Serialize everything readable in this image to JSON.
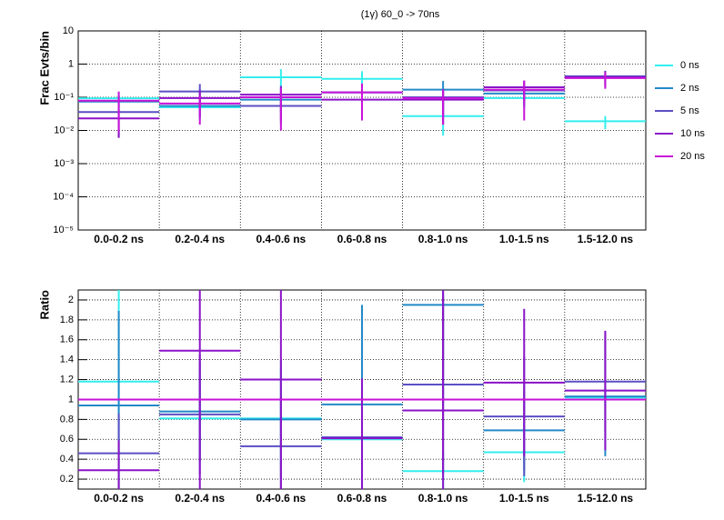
{
  "chart_data": [
    {
      "type": "errorbar",
      "title": "(1γ) 60_0 -> 70ns",
      "y_label": "Frac Evts/bin",
      "log_y": true,
      "grid": true,
      "categories": [
        "0.0-0.2 ns",
        "0.2-0.4 ns",
        "0.4-0.6 ns",
        "0.6-0.8 ns",
        "0.8-1.0 ns",
        "1.0-1.5 ns",
        "1.5-12.0 ns"
      ],
      "ylim": [
        1e-05,
        10
      ],
      "yticks": [
        {
          "value": 1e-05,
          "label": "10⁻⁵"
        },
        {
          "value": 0.0001,
          "label": "10⁻⁴"
        },
        {
          "value": 0.001,
          "label": "10⁻³"
        },
        {
          "value": 0.01,
          "label": "10⁻²"
        },
        {
          "value": 0.1,
          "label": "10⁻¹"
        },
        1,
        10
      ],
      "legend": "right",
      "series": [
        {
          "name": "0 ns",
          "color": "#33eeee",
          "values": [
            0.093,
            0.05,
            0.4,
            0.36,
            0.027,
            0.095,
            0.019
          ],
          "errors": [
            0.05,
            0.03,
            0.3,
            0.25,
            0.02,
            0.05,
            0.008
          ]
        },
        {
          "name": "2 ns",
          "color": "#2389c8",
          "values": [
            0.074,
            0.055,
            0.085,
            0.14,
            0.17,
            0.13,
            0.42
          ],
          "errors": [
            0.04,
            0.03,
            0.05,
            0.08,
            0.14,
            0.08,
            0.2
          ]
        },
        {
          "name": "5 ns",
          "color": "#5a4fc4",
          "values": [
            0.036,
            0.15,
            0.055,
            0.14,
            0.1,
            0.16,
            0.43
          ],
          "errors": [
            0.03,
            0.1,
            0.04,
            0.08,
            0.07,
            0.1,
            0.2
          ]
        },
        {
          "name": "10 ns",
          "color": "#8a12c8",
          "values": [
            0.023,
            0.095,
            0.12,
            0.085,
            0.085,
            0.2,
            0.4
          ],
          "errors": [
            0.017,
            0.07,
            0.1,
            0.06,
            0.07,
            0.12,
            0.2
          ]
        },
        {
          "name": "20 ns",
          "color": "#c812d8",
          "values": [
            0.079,
            0.065,
            0.1,
            0.14,
            0.095,
            0.17,
            0.38
          ],
          "errors": [
            0.07,
            0.05,
            0.09,
            0.12,
            0.08,
            0.15,
            0.2
          ]
        }
      ]
    },
    {
      "type": "errorbar",
      "y_label": "Ratio",
      "log_y": false,
      "grid": true,
      "categories": [
        "0.0-0.2 ns",
        "0.2-0.4 ns",
        "0.4-0.6 ns",
        "0.6-0.8 ns",
        "0.8-1.0 ns",
        "1.0-1.5 ns",
        "1.5-12.0 ns"
      ],
      "ylim": [
        0.1,
        2.1
      ],
      "yticks": [
        0.2,
        0.4,
        0.6,
        0.8,
        1,
        1.2,
        1.4,
        1.6,
        1.8,
        2
      ],
      "series": [
        {
          "color": "#33eeee",
          "values": [
            1.18,
            0.81,
            0.81,
            0.6,
            0.28,
            0.47,
            1.02
          ],
          "errors": [
            1.0,
            0.4,
            0.5,
            0.4,
            0.2,
            0.3,
            0.1
          ]
        },
        {
          "color": "#2389c8",
          "values": [
            0.94,
            0.88,
            0.8,
            0.95,
            1.95,
            0.69,
            1.03
          ],
          "errors": [
            0.95,
            0.5,
            0.6,
            1.0,
            1.0,
            0.4,
            0.6
          ]
        },
        {
          "color": "#5a4fc4",
          "values": [
            0.46,
            0.85,
            0.53,
            0.62,
            1.15,
            0.83,
            1.18
          ],
          "errors": [
            0.4,
            0.6,
            0.5,
            0.5,
            0.9,
            0.6,
            0.5
          ]
        },
        {
          "color": "#8a12c8",
          "values": [
            0.29,
            1.49,
            1.2,
            0.61,
            0.89,
            1.17,
            1.09
          ],
          "errors": [
            0.3,
            1.5,
            1.2,
            0.6,
            1.3,
            0.74,
            0.6
          ]
        },
        {
          "color": "#c812d8",
          "values": [
            1,
            1,
            1,
            1,
            1,
            1,
            1
          ],
          "errors": [
            0,
            0,
            0,
            0,
            0,
            0,
            0
          ]
        }
      ]
    }
  ]
}
